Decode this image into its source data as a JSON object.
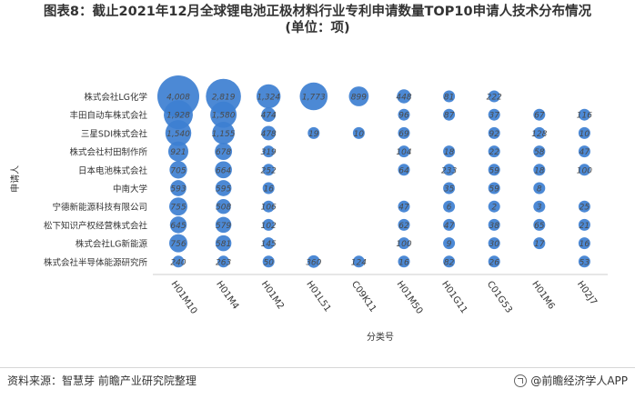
{
  "title": {
    "line1": "图表8：截止2021年12月全球锂电池正极材料行业专利申请数量TOP10申请人技术分布情况",
    "line2": "(单位：项)"
  },
  "source": "资料来源：智慧芽 前瞻产业研究院整理",
  "brand": "@前瞻经济学人APP",
  "colors": {
    "bubble": "#3d7fd1",
    "label": "#4a4a4a",
    "axis": "#cccccc"
  },
  "chart_data": {
    "type": "bubble",
    "xlabel": "分类号",
    "ylabel": "申请人",
    "x_categories": [
      "H01M10",
      "H01M4",
      "H01M2",
      "H01L51",
      "C09K11",
      "H01M50",
      "H01G11",
      "C01G53",
      "H01M6",
      "H02J7"
    ],
    "y_categories": [
      "株式会社LG化学",
      "丰田自动车株式会社",
      "三星SDI株式会社",
      "株式会社村田制作所",
      "日本电池株式会社",
      "中南大学",
      "宁德新能源科技有限公司",
      "松下知识产权经营株式会社",
      "株式会社LG新能源",
      "株式会社半导体能源研究所"
    ],
    "values": [
      [
        4008,
        2819,
        1324,
        1773,
        899,
        448,
        81,
        222,
        null,
        null
      ],
      [
        1928,
        1580,
        474,
        null,
        null,
        96,
        87,
        37,
        67,
        116
      ],
      [
        1540,
        1155,
        478,
        19,
        10,
        69,
        null,
        92,
        128,
        10
      ],
      [
        921,
        678,
        319,
        null,
        null,
        104,
        18,
        22,
        58,
        47
      ],
      [
        705,
        664,
        252,
        null,
        null,
        64,
        233,
        59,
        18,
        100
      ],
      [
        593,
        595,
        16,
        null,
        null,
        null,
        35,
        59,
        8,
        null
      ],
      [
        755,
        508,
        106,
        null,
        null,
        47,
        6,
        2,
        3,
        25
      ],
      [
        645,
        579,
        102,
        null,
        null,
        62,
        47,
        38,
        65,
        21
      ],
      [
        756,
        581,
        145,
        null,
        null,
        100,
        9,
        30,
        17,
        16
      ],
      [
        240,
        263,
        50,
        360,
        124,
        16,
        82,
        26,
        null,
        53
      ]
    ]
  }
}
